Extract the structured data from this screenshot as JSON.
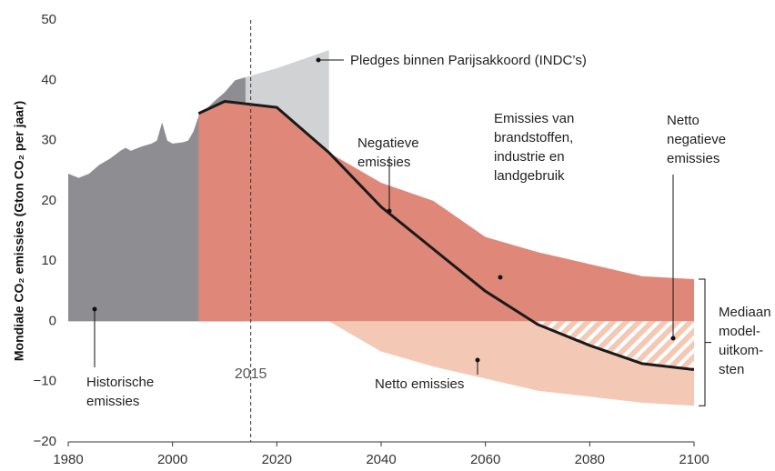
{
  "chart_data": {
    "type": "area",
    "y_label": "Mondiale CO₂ emissies (Gton CO₂ per jaar)",
    "xlim": [
      1980,
      2100
    ],
    "xticks": [
      1980,
      2000,
      2020,
      2040,
      2060,
      2080,
      2100
    ],
    "ylim": [
      -20,
      50
    ],
    "yticks": [
      {
        "value": -20,
        "label": "−20"
      },
      {
        "value": -10,
        "label": "−10"
      },
      0,
      10,
      20,
      30,
      40,
      50
    ],
    "vline": 2015,
    "series": [
      {
        "name": "Historische\nemissies",
        "style": "area",
        "color": "#8e8e92",
        "x": [
          1980,
          1982,
          1984,
          1986,
          1988,
          1990,
          1991,
          1992,
          1994,
          1996,
          1997,
          1998,
          1999,
          2000,
          2002,
          2003,
          2004,
          2005,
          2008,
          2010,
          2012,
          2014
        ],
        "values": [
          24.5,
          23.8,
          24.5,
          26,
          27,
          28.3,
          28.8,
          28.3,
          29,
          29.5,
          30,
          33,
          30,
          29.5,
          29.7,
          30,
          31.5,
          34,
          36.5,
          38,
          40,
          40.5
        ]
      },
      {
        "name": "Pledges binnen Parijsakkoord (INDC’s)",
        "style": "area",
        "color": "#d1d2d4",
        "x": [
          2014,
          2020,
          2025,
          2030
        ],
        "values": [
          40.5,
          42,
          43.5,
          45
        ]
      },
      {
        "name": "Emissies van\nbrandstoffen,\nindustrie en\nlandgebruik",
        "style": "area",
        "color": "#df8778",
        "x": [
          2005,
          2010,
          2020,
          2030,
          2040,
          2050,
          2060,
          2070,
          2080,
          2090,
          2100
        ],
        "values": [
          34.5,
          36.5,
          35.5,
          28,
          23,
          20,
          14,
          11.5,
          9.5,
          7.5,
          7
        ]
      },
      {
        "name": "Negatieve\nemissies",
        "style": "area",
        "color": "#f3c9b6",
        "x": [
          2030,
          2040,
          2050,
          2060,
          2070,
          2080,
          2090,
          2100
        ],
        "values": [
          0,
          -5,
          -7.5,
          -9.5,
          -11.5,
          -12.5,
          -13.5,
          -14
        ]
      },
      {
        "name": "Netto emissies",
        "style": "line",
        "color": "#1a1a1a",
        "x": [
          2005,
          2010,
          2020,
          2030,
          2040,
          2050,
          2060,
          2070,
          2080,
          2090,
          2100
        ],
        "values": [
          34.5,
          36.5,
          35.5,
          28,
          19,
          12,
          5,
          -0.5,
          -4,
          -7,
          -8
        ]
      }
    ],
    "annotations": [
      "Netto\nnegatieve\nemissies",
      "Mediaan\nmodel-\nuitkom-\nsten"
    ]
  }
}
